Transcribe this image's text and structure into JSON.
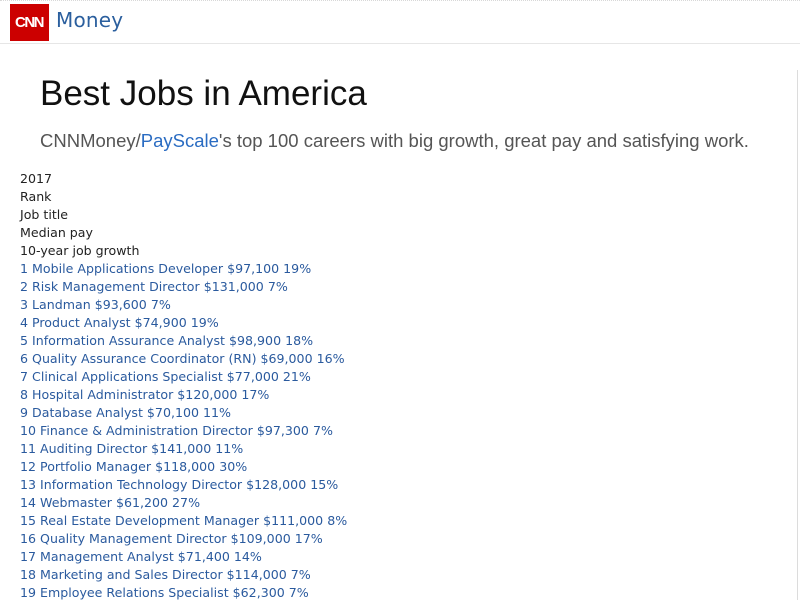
{
  "header": {
    "logo_mark": "CNN",
    "logo_label": "Money"
  },
  "page": {
    "title": "Best Jobs in America",
    "subtitle_prefix": "CNNMoney/",
    "subtitle_link": "PayScale",
    "subtitle_suffix": "'s top 100 careers with big growth, great pay and satisfying work."
  },
  "table": {
    "headers": [
      "2017",
      "Rank",
      "Job title",
      "Median pay",
      "10-year job growth"
    ],
    "rows": [
      {
        "rank": "1",
        "title": "Mobile Applications Developer",
        "pay": "$97,100",
        "growth": "19%"
      },
      {
        "rank": "2",
        "title": "Risk Management Director",
        "pay": "$131,000",
        "growth": "7%"
      },
      {
        "rank": "3",
        "title": "Landman",
        "pay": "$93,600",
        "growth": "7%"
      },
      {
        "rank": "4",
        "title": "Product Analyst",
        "pay": "$74,900",
        "growth": "19%"
      },
      {
        "rank": "5",
        "title": "Information Assurance Analyst",
        "pay": "$98,900",
        "growth": "18%"
      },
      {
        "rank": "6",
        "title": "Quality Assurance Coordinator (RN)",
        "pay": "$69,000",
        "growth": "16%"
      },
      {
        "rank": "7",
        "title": "Clinical Applications Specialist",
        "pay": "$77,000",
        "growth": "21%"
      },
      {
        "rank": "8",
        "title": "Hospital Administrator",
        "pay": "$120,000",
        "growth": "17%"
      },
      {
        "rank": "9",
        "title": "Database Analyst",
        "pay": "$70,100",
        "growth": "11%"
      },
      {
        "rank": "10",
        "title": "Finance & Administration Director",
        "pay": "$97,300",
        "growth": "7%"
      },
      {
        "rank": "11",
        "title": "Auditing Director",
        "pay": "$141,000",
        "growth": "11%"
      },
      {
        "rank": "12",
        "title": "Portfolio Manager",
        "pay": "$118,000",
        "growth": "30%"
      },
      {
        "rank": "13",
        "title": "Information Technology Director",
        "pay": "$128,000",
        "growth": "15%"
      },
      {
        "rank": "14",
        "title": "Webmaster",
        "pay": "$61,200",
        "growth": "27%"
      },
      {
        "rank": "15",
        "title": "Real Estate Development Manager",
        "pay": "$111,000",
        "growth": "8%"
      },
      {
        "rank": "16",
        "title": "Quality Management Director",
        "pay": "$109,000",
        "growth": "17%"
      },
      {
        "rank": "17",
        "title": "Management Analyst",
        "pay": "$71,400",
        "growth": "14%"
      },
      {
        "rank": "18",
        "title": "Marketing and Sales Director",
        "pay": "$114,000",
        "growth": "7%"
      },
      {
        "rank": "19",
        "title": "Employee Relations Specialist",
        "pay": "$62,300",
        "growth": "7%"
      }
    ]
  },
  "colors": {
    "brand_red": "#cc0000",
    "link_blue": "#2a5a9e",
    "text_dark": "#111111",
    "text_gray": "#555555"
  }
}
